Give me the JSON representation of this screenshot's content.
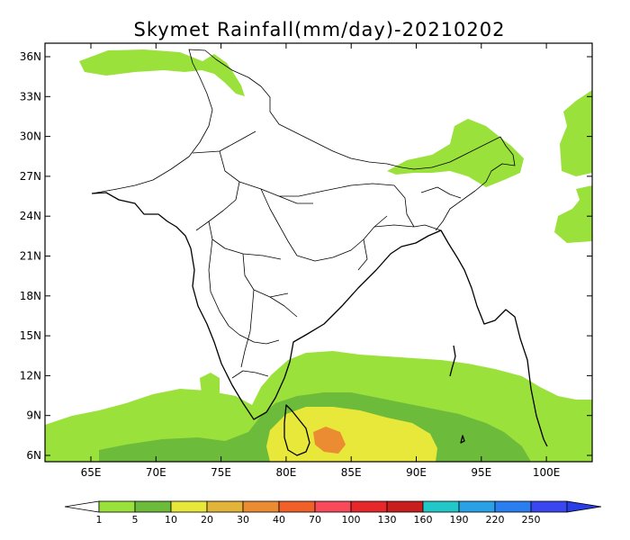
{
  "title": "Skymet Rainfall(mm/day)-20210202",
  "axes": {
    "x_ticks": [
      "65E",
      "70E",
      "75E",
      "80E",
      "85E",
      "90E",
      "95E",
      "100E"
    ],
    "y_ticks": [
      "36N",
      "33N",
      "30N",
      "27N",
      "24N",
      "21N",
      "18N",
      "15N",
      "12N",
      "9N",
      "6N"
    ]
  },
  "colorbar": {
    "labels": [
      "1",
      "5",
      "10",
      "20",
      "30",
      "40",
      "70",
      "100",
      "130",
      "160",
      "190",
      "220",
      "250"
    ],
    "colors": [
      "#9be13c",
      "#6dbb3a",
      "#e8e83a",
      "#e2b43a",
      "#ec8c32",
      "#f06028",
      "#f84a5a",
      "#e6282a",
      "#c81e1e",
      "#22c8c8",
      "#2aa0e6",
      "#2a7ef0",
      "#3a46f0"
    ],
    "under_color": "#ffffff",
    "over_color": "#2a3ee8"
  },
  "colors": {
    "light_green": "#9be13c",
    "mid_green": "#6dbb3a",
    "yellow": "#e8e83a",
    "orange": "#ec8c32"
  }
}
